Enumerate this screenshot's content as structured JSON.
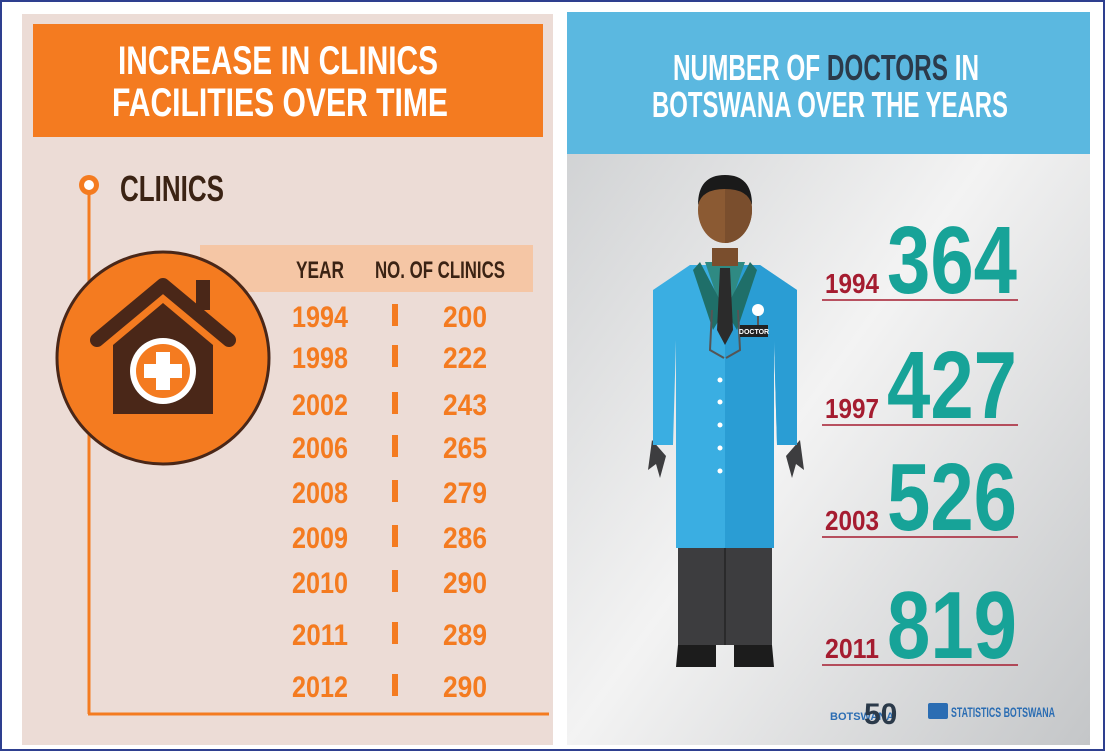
{
  "clinics": {
    "title": [
      "INCREASE IN CLINICS",
      "FACILITIES OVER TIME"
    ],
    "section": "CLINICS",
    "header": [
      "YEAR",
      "NO. OF CLINICS"
    ],
    "rows": [
      [
        "1994",
        "200"
      ],
      [
        "1998",
        "222"
      ],
      [
        "2002",
        "243"
      ],
      [
        "2006",
        "265"
      ],
      [
        "2008",
        "279"
      ],
      [
        "2009",
        "286"
      ],
      [
        "2010",
        "290"
      ],
      [
        "2011",
        "289"
      ],
      [
        "2012",
        "290"
      ]
    ]
  },
  "doctors": {
    "title": {
      "line1_start": "NUMBER OF",
      "line1_highlight": "DOCTORS",
      "line1_end": "IN",
      "line2": "BOTSWANA OVER THE YEARS"
    },
    "badge": "DOCTOR",
    "rows": [
      [
        "1994",
        "364"
      ],
      [
        "1997",
        "427"
      ],
      [
        "2003",
        "526"
      ],
      [
        "2011",
        "819"
      ]
    ]
  },
  "footer": {
    "logo1": "BOTSWANA",
    "logo1_number": "50",
    "logo2": "STATISTICS BOTSWANA"
  }
}
